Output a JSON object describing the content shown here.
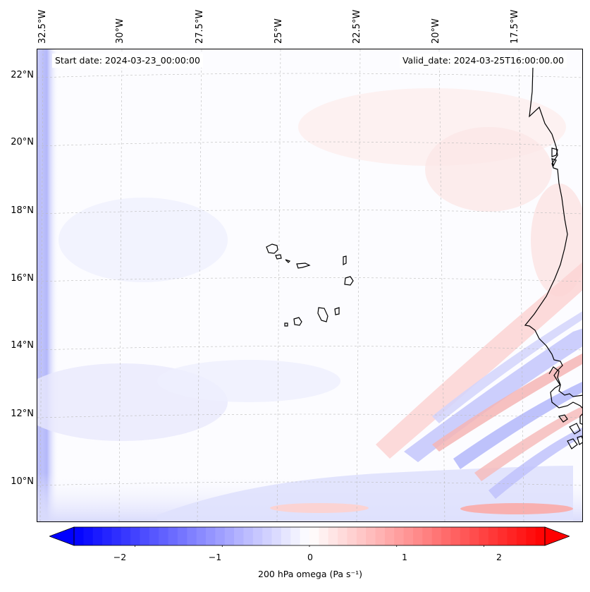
{
  "map": {
    "start_date": "Start date: 2024-03-23_00:00:00",
    "valid_date": "Valid_date: 2024-03-25T16:00:00.00",
    "lat_labels": [
      "22°N",
      "20°N",
      "18°N",
      "16°N",
      "14°N",
      "12°N",
      "10°N"
    ],
    "lon_labels": [
      "32.5°W",
      "30°W",
      "27.5°W",
      "25°W",
      "22.5°W",
      "20°W",
      "17.5°W"
    ],
    "islands": [
      "Santo Antão",
      "São Vicente",
      "São Nicolau",
      "Sal",
      "Boa Vista",
      "Maio",
      "Santiago",
      "Fogo",
      "Brava"
    ],
    "coastline": "West Africa"
  },
  "colorbar": {
    "label": "200 hPa omega (Pa s⁻¹)",
    "ticks": [
      "−2",
      "−1",
      "0",
      "1",
      "2"
    ],
    "range": [
      -2.7,
      2.7
    ],
    "cmap": "bwr",
    "colors": {
      "neg": "#0000ff",
      "zero": "#ffffff",
      "pos": "#ff0000"
    }
  }
}
